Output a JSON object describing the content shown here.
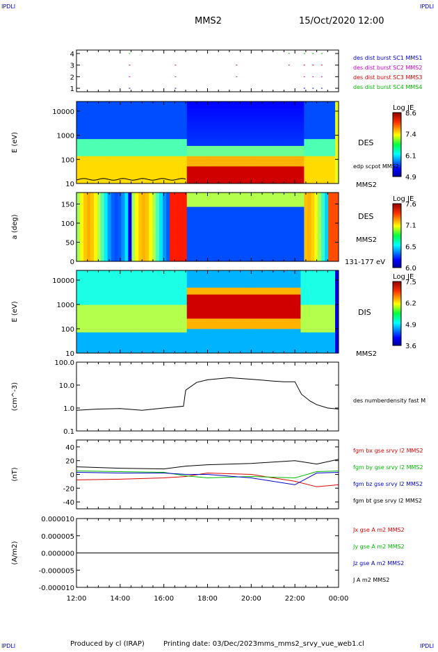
{
  "header": {
    "ipdli_left_top": "IPDLI",
    "ipdli_right_top": "IPDLI",
    "spacecraft": "MMS2",
    "datetime": "15/Oct/2020 12:00",
    "ipdli_left_bottom": "IPDLI",
    "ipdli_right_bottom": "IPDLI"
  },
  "footer": {
    "produced_by": "Produced by cl (IRAP)",
    "printing_date": "Printing date: 03/Dec/2023",
    "file": "mms_mms2_srvy_vue_web1.cl"
  },
  "colors": {
    "blue": "#0000cc",
    "magenta": "#cc00cc",
    "red": "#dd0000",
    "green": "#00bb00",
    "black": "#000000"
  },
  "chart_data": [
    {
      "type": "scatter",
      "panel": "burst-availability",
      "yticks": [
        "1",
        "2",
        "3",
        "4"
      ],
      "xticks": [
        "12:00",
        "14:00",
        "16:00",
        "18:00",
        "20:00",
        "22:00",
        "00:00"
      ],
      "series": [
        {
          "name": "des dist burst SC1 MMS1",
          "color": "#0000cc",
          "y": 1,
          "x_hours": [
            14.4,
            16.5,
            22.4,
            22.8,
            23.2
          ]
        },
        {
          "name": "des dist burst SC2 MMS2",
          "color": "#cc00cc",
          "y": 2,
          "x_hours": [
            14.4,
            16.5,
            19.3,
            22.4,
            22.8,
            23.2
          ]
        },
        {
          "name": "des dist burst SC3 MMS3",
          "color": "#dd0000",
          "y": 3,
          "x_hours": [
            14.4,
            16.5,
            19.3,
            21.7,
            22.4,
            22.8,
            23.2
          ]
        },
        {
          "name": "des dist burst SC4 MMS4",
          "color": "#00bb00",
          "y": 4,
          "x_hours": [
            14.4,
            21.7,
            22.4,
            22.8,
            23.2
          ]
        }
      ]
    },
    {
      "type": "heatmap",
      "panel": "des-energy",
      "ylabel": "E (eV)",
      "yticks": [
        "10",
        "100",
        "1000",
        "10000"
      ],
      "right_labels": [
        "DES",
        "edp scpot MMS2",
        "MMS2"
      ],
      "colorbar": {
        "title": "Log JE",
        "ticks": [
          "8.6",
          "7.4",
          "6.1",
          "4.9"
        ]
      },
      "overlay_series": {
        "name": "edp scpot MMS2",
        "approx_eV_before_17h": 11
      }
    },
    {
      "type": "heatmap",
      "panel": "des-pitch-angle",
      "ylabel": "a (deg)",
      "yticks": [
        "0",
        "50",
        "100",
        "150"
      ],
      "ylim": [
        0,
        180
      ],
      "right_labels": [
        "DES",
        "MMS2",
        "131-177 eV"
      ],
      "colorbar": {
        "title": "Log JE",
        "ticks": [
          "7.6",
          "7.1",
          "6.5",
          "6.0"
        ]
      }
    },
    {
      "type": "heatmap",
      "panel": "dis-energy",
      "ylabel": "E (eV)",
      "yticks": [
        "10",
        "100",
        "1000",
        "10000"
      ],
      "right_labels": [
        "DIS",
        "MMS2"
      ],
      "colorbar": {
        "title": "Log JE",
        "ticks": [
          "7.5",
          "6.2",
          "4.9",
          "3.6"
        ]
      }
    },
    {
      "type": "line",
      "panel": "density",
      "ylabel": "(cm^-3)",
      "yticks": [
        "0.1",
        "1.0",
        "10.0",
        "100.0"
      ],
      "log": true,
      "series": [
        {
          "name": "des numberdensity fast M",
          "color": "#000000",
          "x_hours": [
            12.0,
            13.0,
            14.0,
            15.0,
            16.0,
            16.9,
            17.0,
            17.5,
            18.0,
            19.0,
            20.0,
            21.0,
            21.5,
            22.0,
            22.3,
            22.7,
            23.0,
            23.5,
            24.0
          ],
          "values": [
            0.8,
            0.9,
            0.95,
            0.8,
            1.0,
            1.2,
            6.0,
            13.0,
            17.0,
            21.0,
            18.0,
            15.0,
            14.0,
            14.0,
            4.0,
            2.0,
            1.4,
            1.0,
            0.9
          ]
        }
      ]
    },
    {
      "type": "line",
      "panel": "magnetic-field",
      "ylabel": "(nT)",
      "yticks": [
        "-40",
        "-20",
        "0",
        "20",
        "40"
      ],
      "ylim": [
        -50,
        50
      ],
      "series": [
        {
          "name": "fgm bx gse srvy l2 MMS2",
          "color": "#dd0000",
          "x_hours": [
            12,
            14,
            16,
            17,
            18,
            20,
            22,
            23,
            24
          ],
          "values": [
            -8,
            -7,
            -5,
            -3,
            2,
            0,
            -10,
            -18,
            -15
          ]
        },
        {
          "name": "fgm by gse srvy l2 MMS2",
          "color": "#00bb00",
          "x_hours": [
            12,
            14,
            16,
            17,
            18,
            20,
            22,
            23,
            24
          ],
          "values": [
            5,
            4,
            3,
            -2,
            -5,
            -3,
            -5,
            4,
            5
          ]
        },
        {
          "name": "fgm bz gse srvy l2 MMS2",
          "color": "#0000cc",
          "x_hours": [
            12,
            14,
            16,
            17,
            18,
            20,
            22,
            23,
            24
          ],
          "values": [
            3,
            2,
            2,
            0,
            0,
            -5,
            -15,
            2,
            3
          ]
        },
        {
          "name": "fgm bt gse srvy l2 MMS2",
          "color": "#000000",
          "x_hours": [
            12,
            14,
            16,
            17,
            18,
            20,
            22,
            23,
            24
          ],
          "values": [
            11,
            9,
            8,
            12,
            14,
            16,
            20,
            15,
            22
          ]
        }
      ]
    },
    {
      "type": "line",
      "panel": "current-density",
      "ylabel": "(A/m2)",
      "yticks": [
        "-0.000010",
        "-0.000005",
        "0.000000",
        "0.000005",
        "0.000010"
      ],
      "ylim": [
        -1e-05,
        1e-05
      ],
      "xticks": [
        "12:00",
        "14:00",
        "16:00",
        "18:00",
        "20:00",
        "22:00",
        "00:00"
      ],
      "series": [
        {
          "name": "Jx gse A m2 MMS2",
          "color": "#dd0000",
          "x_hours": [
            12,
            24
          ],
          "values": [
            0,
            0
          ]
        },
        {
          "name": "Jy gse A m2 MMS2",
          "color": "#00bb00",
          "x_hours": [
            12,
            24
          ],
          "values": [
            0,
            0
          ]
        },
        {
          "name": "Jz gse A m2 MMS2",
          "color": "#0000cc",
          "x_hours": [
            12,
            24
          ],
          "values": [
            0,
            0
          ]
        },
        {
          "name": "J A m2 MMS2",
          "color": "#000000",
          "x_hours": [
            12,
            24
          ],
          "values": [
            0,
            0
          ]
        }
      ]
    }
  ]
}
